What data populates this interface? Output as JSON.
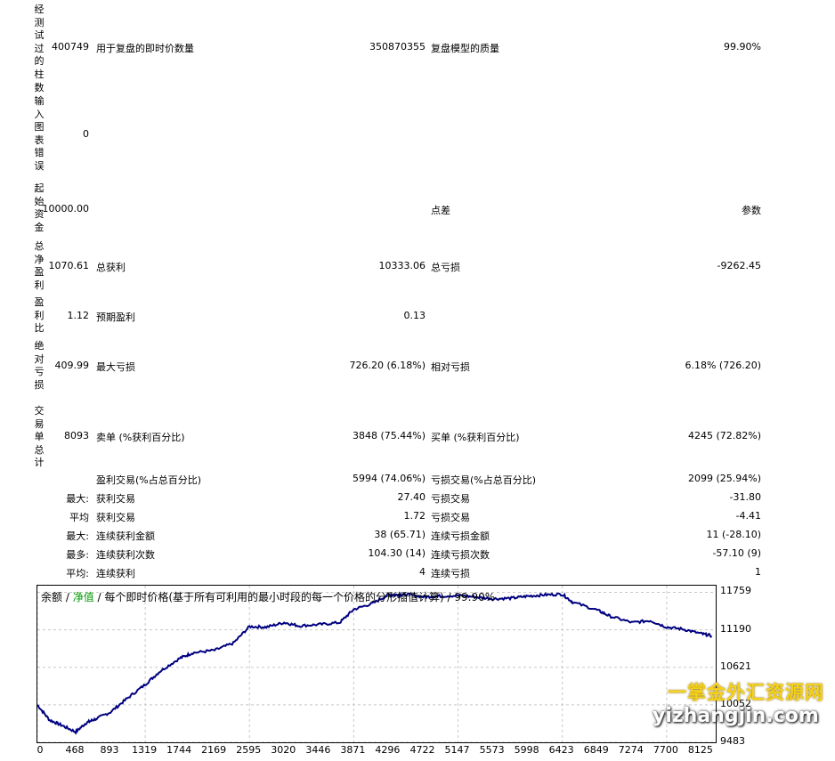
{
  "rows": [
    {
      "label": "经测试过的柱数",
      "value": "400749",
      "k2": "用于复盘的即时价数量",
      "v2": "350870355",
      "k3": "复盘模型的质量",
      "v3": "99.90%"
    },
    {
      "label": "输入图表错误",
      "value": "0"
    },
    {
      "label": "起始资金",
      "value": "10000.00",
      "k3": "点差",
      "v3": "参数"
    },
    {
      "label": "总净盈利",
      "value": "1070.61",
      "k2": "总获利",
      "v2": "10333.06",
      "k3": "总亏损",
      "v3": "-9262.45"
    },
    {
      "label": "盈利比",
      "value": "1.12",
      "k2": "预期盈利",
      "v2": "0.13"
    },
    {
      "label": "绝对亏损",
      "value": "409.99",
      "k2": "最大亏损",
      "v2": "726.20 (6.18%)",
      "k3": "相对亏损",
      "v3": "6.18% (726.20)"
    },
    {
      "label": "交易单总计",
      "value": "8093",
      "k2": "卖单 (%获利百分比)",
      "v2": "3848 (75.44%)",
      "k3": "买单 (%获利百分比)",
      "v3": "4245 (72.82%)"
    }
  ],
  "trades": [
    {
      "prefix": "",
      "k2": "盈利交易(%占总百分比)",
      "v2": "5994 (74.06%)",
      "k3": "亏损交易(%占总百分比)",
      "v3": "2099 (25.94%)"
    },
    {
      "prefix": "最大:",
      "k2": "获利交易",
      "v2": "27.40",
      "k3": "亏损交易",
      "v3": "-31.80"
    },
    {
      "prefix": "平均",
      "k2": "获利交易",
      "v2": "1.72",
      "k3": "亏损交易",
      "v3": "-4.41"
    },
    {
      "prefix": "最大:",
      "k2": "连续获利金额",
      "v2": "38 (65.71)",
      "k3": "连续亏损金额",
      "v3": "11 (-28.10)"
    },
    {
      "prefix": "最多:",
      "k2": "连续获利次数",
      "v2": "104.30 (14)",
      "k3": "连续亏损次数",
      "v3": "-57.10 (9)"
    },
    {
      "prefix": "平均:",
      "k2": "连续获利",
      "v2": "4",
      "k3": "连续亏损",
      "v3": "1"
    }
  ],
  "chart": {
    "legend_balance": "余额",
    "legend_sep1": " / ",
    "legend_equity": "净值",
    "legend_rest": " / 每个即时价格(基于所有可利用的最小时段的每一个价格的分形插值计算) / 99.90%",
    "line_color": "#000080"
  },
  "chart_data": {
    "type": "line",
    "title": "",
    "xlabel": "",
    "ylabel": "",
    "xlim": [
      0,
      8300
    ],
    "ylim": [
      9483,
      11860
    ],
    "x_ticks": [
      "0",
      "468",
      "893",
      "1319",
      "1744",
      "2169",
      "2595",
      "3020",
      "3446",
      "3871",
      "4296",
      "4722",
      "5147",
      "5573",
      "5998",
      "6423",
      "6849",
      "7274",
      "7700",
      "8125"
    ],
    "y_ticks": [
      "11759",
      "11190",
      "10621",
      "10052",
      "9483"
    ],
    "grid": true,
    "series": [
      {
        "x": [
          0,
          150,
          300,
          468,
          600,
          700,
          893,
          1100,
          1319,
          1500,
          1744,
          1900,
          2169,
          2400,
          2595,
          2800,
          3020,
          3200,
          3446,
          3700,
          3871,
          4100,
          4296,
          4400,
          4500,
          4722,
          4900,
          5147,
          5350,
          5573,
          5800,
          5998,
          6200,
          6423,
          6550,
          6849,
          7000,
          7274,
          7500,
          7700,
          7900,
          8125,
          8250
        ],
        "y": [
          10050,
          9820,
          9740,
          9640,
          9780,
          9830,
          9940,
          10150,
          10360,
          10560,
          10760,
          10840,
          10880,
          10990,
          11240,
          11230,
          11300,
          11250,
          11270,
          11300,
          11500,
          11590,
          11720,
          11720,
          11730,
          11690,
          11700,
          11710,
          11690,
          11660,
          11670,
          11700,
          11720,
          11730,
          11610,
          11490,
          11400,
          11300,
          11330,
          11230,
          11200,
          11130,
          11100
        ]
      }
    ]
  },
  "watermark": {
    "cn": "一掌金外汇资源网",
    "url": "yizhangjin.com"
  }
}
